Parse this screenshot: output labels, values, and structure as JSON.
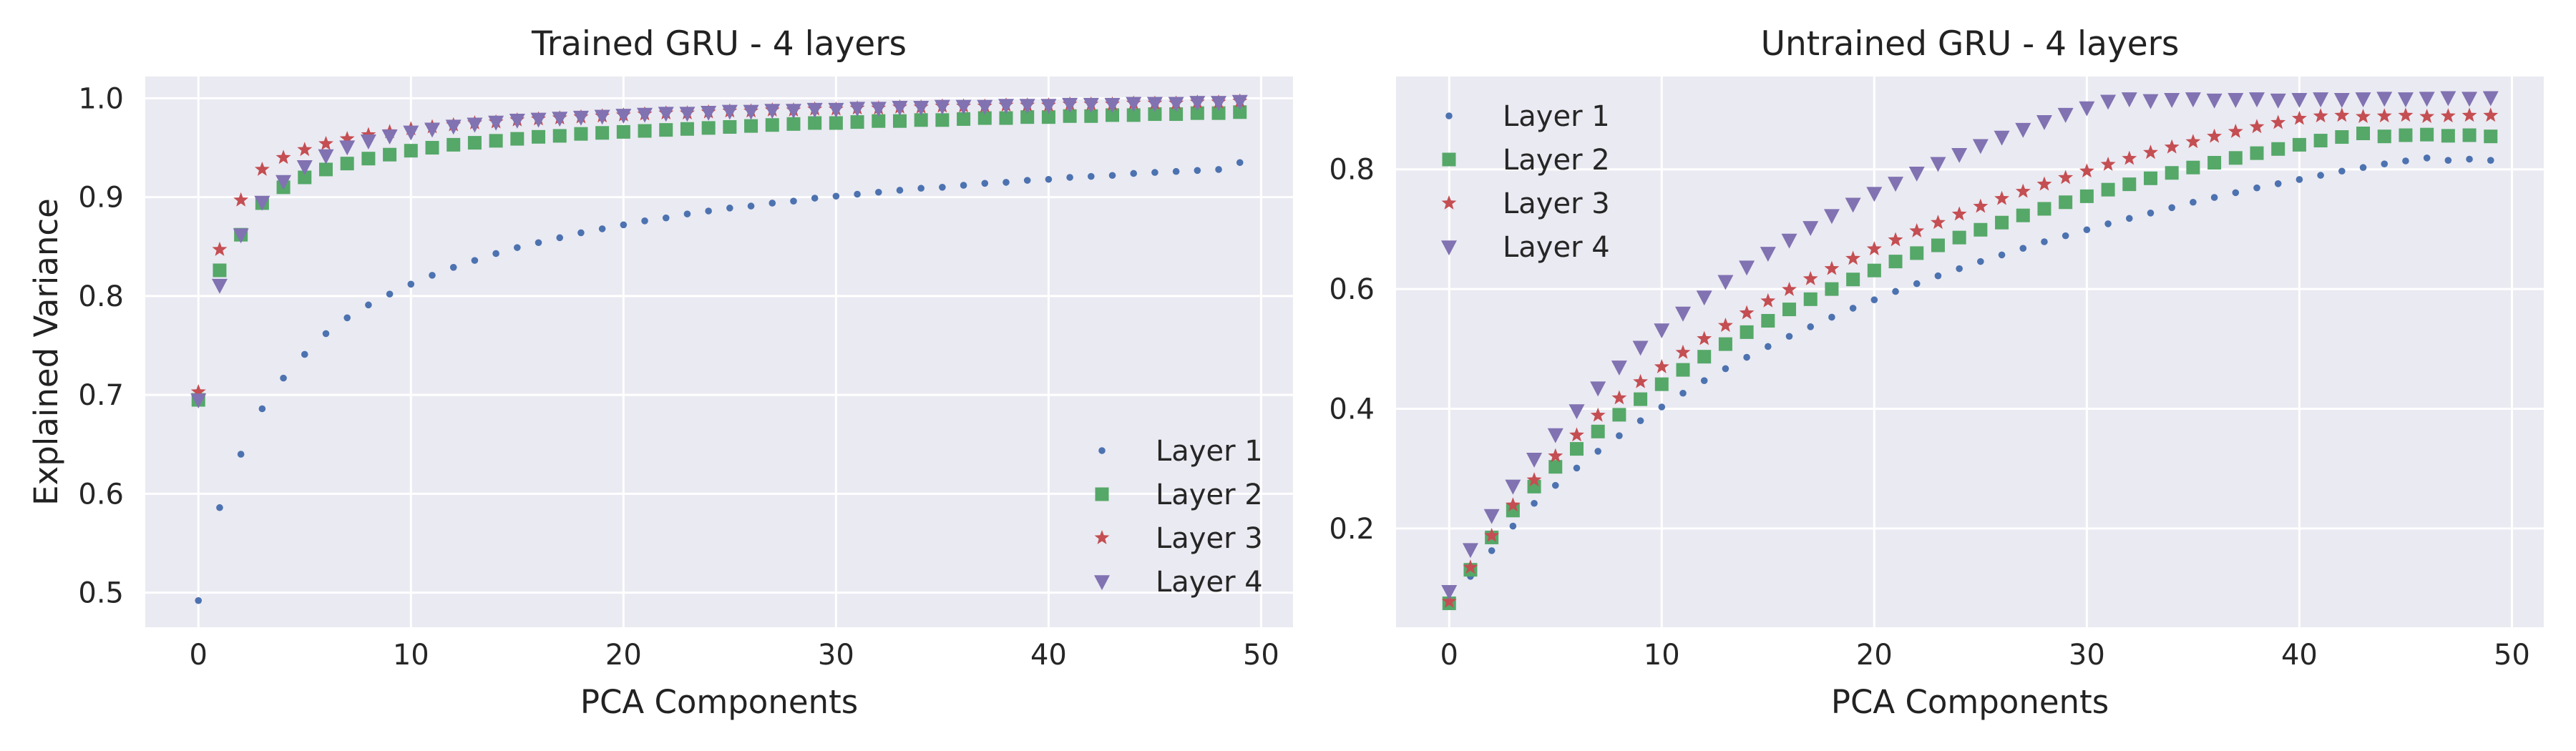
{
  "chart_data": [
    {
      "type": "scatter",
      "title": "Trained GRU - 4 layers",
      "xlabel": "PCA Components",
      "ylabel": "Explained Variance",
      "xlim": [
        -2.5,
        51.5
      ],
      "ylim": [
        0.465,
        1.022
      ],
      "xticks": [
        0,
        10,
        20,
        30,
        40,
        50
      ],
      "yticks": [
        0.5,
        0.6,
        0.7,
        0.8,
        0.9,
        1.0
      ],
      "ytick_labels": [
        "0.5",
        "0.6",
        "0.7",
        "0.8",
        "0.9",
        "1.0"
      ],
      "grid": true,
      "legend_position": "lower-right",
      "series": [
        {
          "name": "Layer 1",
          "marker": "dot",
          "color": "#4c72b0",
          "y_first": 0.492,
          "y_last": 0.935,
          "curve": 0.195,
          "values": [
            0.492,
            0.586,
            0.64,
            0.686,
            0.717,
            0.741,
            0.762,
            0.778,
            0.791,
            0.802,
            0.812,
            0.821,
            0.829,
            0.836,
            0.843,
            0.849,
            0.854,
            0.859,
            0.864,
            0.868,
            0.872,
            0.876,
            0.879,
            0.883,
            0.886,
            0.889,
            0.891,
            0.894,
            0.896,
            0.899,
            0.901,
            0.903,
            0.905,
            0.907,
            0.909,
            0.91,
            0.912,
            0.914,
            0.915,
            0.917,
            0.918,
            0.92,
            0.921,
            0.922,
            0.924,
            0.925,
            0.926,
            0.927,
            0.928,
            0.935
          ]
        },
        {
          "name": "Layer 2",
          "marker": "square",
          "color": "#55a868",
          "y_first": 0.695,
          "y_last": 0.986,
          "curve": 0.055,
          "values": [
            0.695,
            0.826,
            0.862,
            0.894,
            0.91,
            0.92,
            0.928,
            0.934,
            0.939,
            0.943,
            0.947,
            0.95,
            0.953,
            0.955,
            0.957,
            0.959,
            0.961,
            0.962,
            0.964,
            0.965,
            0.966,
            0.967,
            0.968,
            0.969,
            0.97,
            0.971,
            0.972,
            0.973,
            0.974,
            0.975,
            0.975,
            0.976,
            0.977,
            0.977,
            0.978,
            0.978,
            0.979,
            0.98,
            0.98,
            0.981,
            0.981,
            0.982,
            0.982,
            0.983,
            0.983,
            0.984,
            0.984,
            0.985,
            0.985,
            0.986
          ]
        },
        {
          "name": "Layer 3",
          "marker": "star",
          "color": "#c44e52",
          "y_first": 0.703,
          "y_last": 0.997,
          "curve": 0.04,
          "values": [
            0.703,
            0.847,
            0.897,
            0.928,
            0.94,
            0.948,
            0.954,
            0.959,
            0.963,
            0.966,
            0.969,
            0.971,
            0.973,
            0.975,
            0.976,
            0.978,
            0.979,
            0.98,
            0.981,
            0.982,
            0.983,
            0.984,
            0.985,
            0.985,
            0.986,
            0.987,
            0.987,
            0.988,
            0.988,
            0.989,
            0.989,
            0.99,
            0.99,
            0.991,
            0.991,
            0.992,
            0.992,
            0.992,
            0.993,
            0.993,
            0.993,
            0.994,
            0.994,
            0.994,
            0.995,
            0.995,
            0.995,
            0.996,
            0.996,
            0.997
          ]
        },
        {
          "name": "Layer 4",
          "marker": "triangle-down",
          "color": "#8172b2",
          "y_first": 0.695,
          "y_last": 0.997,
          "curve": 0.045,
          "values": [
            0.695,
            0.811,
            0.862,
            0.895,
            0.916,
            0.931,
            0.942,
            0.951,
            0.957,
            0.962,
            0.966,
            0.969,
            0.972,
            0.974,
            0.976,
            0.978,
            0.979,
            0.98,
            0.981,
            0.982,
            0.983,
            0.984,
            0.985,
            0.985,
            0.986,
            0.987,
            0.987,
            0.988,
            0.988,
            0.989,
            0.989,
            0.99,
            0.99,
            0.991,
            0.991,
            0.992,
            0.992,
            0.992,
            0.993,
            0.993,
            0.993,
            0.994,
            0.994,
            0.994,
            0.995,
            0.995,
            0.995,
            0.996,
            0.996,
            0.997
          ]
        }
      ]
    },
    {
      "type": "scatter",
      "title": "Untrained GRU - 4 layers",
      "xlabel": "PCA Components",
      "ylabel": "",
      "xlim": [
        -2.5,
        51.5
      ],
      "ylim": [
        0.035,
        0.955
      ],
      "xticks": [
        0,
        10,
        20,
        30,
        40,
        50
      ],
      "yticks": [
        0.2,
        0.4,
        0.6,
        0.8
      ],
      "ytick_labels": [
        "0.2",
        "0.4",
        "0.6",
        "0.8"
      ],
      "grid": true,
      "legend_position": "upper-left",
      "series": [
        {
          "name": "Layer 1",
          "marker": "dot",
          "color": "#4c72b0",
          "values": [
            0.075,
            0.12,
            0.163,
            0.204,
            0.242,
            0.272,
            0.301,
            0.329,
            0.355,
            0.38,
            0.403,
            0.426,
            0.447,
            0.467,
            0.486,
            0.504,
            0.521,
            0.537,
            0.553,
            0.568,
            0.582,
            0.596,
            0.609,
            0.622,
            0.634,
            0.646,
            0.657,
            0.668,
            0.679,
            0.689,
            0.699,
            0.709,
            0.718,
            0.727,
            0.736,
            0.745,
            0.753,
            0.761,
            0.769,
            0.776,
            0.783,
            0.79,
            0.797,
            0.803,
            0.809,
            0.814,
            0.819,
            0.815,
            0.817,
            0.815
          ]
        },
        {
          "name": "Layer 2",
          "marker": "square",
          "color": "#55a868",
          "values": [
            0.075,
            0.131,
            0.185,
            0.23,
            0.27,
            0.303,
            0.333,
            0.362,
            0.39,
            0.416,
            0.441,
            0.465,
            0.487,
            0.508,
            0.528,
            0.547,
            0.566,
            0.583,
            0.6,
            0.616,
            0.631,
            0.646,
            0.66,
            0.673,
            0.686,
            0.699,
            0.711,
            0.723,
            0.734,
            0.745,
            0.755,
            0.766,
            0.775,
            0.785,
            0.794,
            0.803,
            0.811,
            0.819,
            0.827,
            0.834,
            0.841,
            0.848,
            0.854,
            0.86,
            0.855,
            0.857,
            0.858,
            0.856,
            0.857,
            0.855
          ]
        },
        {
          "name": "Layer 3",
          "marker": "star",
          "color": "#c44e52",
          "values": [
            0.078,
            0.135,
            0.188,
            0.239,
            0.281,
            0.321,
            0.356,
            0.389,
            0.418,
            0.445,
            0.47,
            0.494,
            0.517,
            0.539,
            0.56,
            0.58,
            0.599,
            0.617,
            0.634,
            0.651,
            0.667,
            0.682,
            0.697,
            0.711,
            0.725,
            0.738,
            0.751,
            0.763,
            0.775,
            0.786,
            0.797,
            0.808,
            0.818,
            0.828,
            0.837,
            0.846,
            0.855,
            0.863,
            0.871,
            0.878,
            0.885,
            0.889,
            0.89,
            0.888,
            0.889,
            0.89,
            0.888,
            0.889,
            0.89,
            0.89
          ]
        },
        {
          "name": "Layer 4",
          "marker": "triangle-down",
          "color": "#8172b2",
          "values": [
            0.095,
            0.165,
            0.222,
            0.271,
            0.316,
            0.357,
            0.397,
            0.435,
            0.47,
            0.503,
            0.532,
            0.56,
            0.587,
            0.613,
            0.637,
            0.66,
            0.682,
            0.703,
            0.723,
            0.742,
            0.76,
            0.777,
            0.794,
            0.81,
            0.825,
            0.84,
            0.854,
            0.867,
            0.88,
            0.892,
            0.903,
            0.914,
            0.918,
            0.915,
            0.917,
            0.918,
            0.916,
            0.917,
            0.918,
            0.916,
            0.917,
            0.918,
            0.917,
            0.918,
            0.919,
            0.918,
            0.919,
            0.92,
            0.919,
            0.92
          ]
        }
      ]
    }
  ]
}
